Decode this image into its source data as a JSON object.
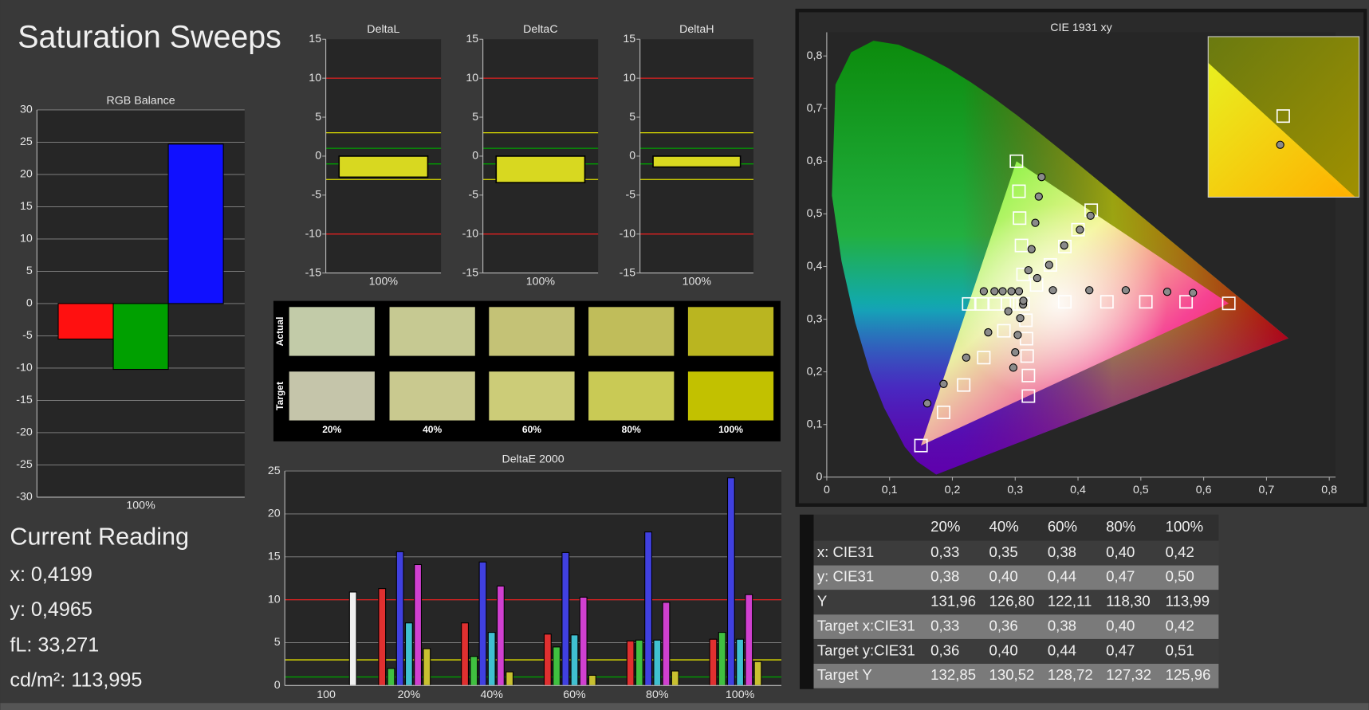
{
  "title": "Saturation Sweeps",
  "chart_data": [
    {
      "type": "bar",
      "title": "RGB Balance",
      "categories": [
        "100%"
      ],
      "series": [
        {
          "color": "#ff1010",
          "values": [
            -5.5
          ]
        },
        {
          "color": "#00a000",
          "values": [
            -10.2
          ]
        },
        {
          "color": "#1010ff",
          "values": [
            24.7
          ]
        }
      ],
      "ylim": [
        -30,
        30
      ],
      "yticks": [
        -30,
        -25,
        -20,
        -15,
        -10,
        -5,
        0,
        5,
        10,
        15,
        20,
        25,
        30
      ],
      "grid": true
    },
    {
      "type": "bar",
      "title": "DeltaL",
      "categories": [
        "100%"
      ],
      "values": [
        -2.7
      ],
      "color": "#d8d820",
      "ylim": [
        -15,
        15
      ],
      "yticks": [
        -15,
        -10,
        -5,
        0,
        5,
        10,
        15
      ],
      "grid": false,
      "reference_lines": [
        {
          "value": 10,
          "color": "#e02020"
        },
        {
          "value": -10,
          "color": "#e02020"
        },
        {
          "value": 3,
          "color": "#e0e000"
        },
        {
          "value": -3,
          "color": "#e0e000"
        },
        {
          "value": 1,
          "color": "#00a000"
        },
        {
          "value": -1,
          "color": "#00a000"
        }
      ]
    },
    {
      "type": "bar",
      "title": "DeltaC",
      "categories": [
        "100%"
      ],
      "values": [
        -3.4
      ],
      "color": "#d8d820",
      "ylim": [
        -15,
        15
      ],
      "yticks": [
        -15,
        -10,
        -5,
        0,
        5,
        10,
        15
      ],
      "grid": false,
      "reference_lines": [
        {
          "value": 10,
          "color": "#e02020"
        },
        {
          "value": -10,
          "color": "#e02020"
        },
        {
          "value": 3,
          "color": "#e0e000"
        },
        {
          "value": -3,
          "color": "#e0e000"
        },
        {
          "value": 1,
          "color": "#00a000"
        },
        {
          "value": -1,
          "color": "#00a000"
        }
      ]
    },
    {
      "type": "bar",
      "title": "DeltaH",
      "categories": [
        "100%"
      ],
      "values": [
        -1.4
      ],
      "color": "#d8d820",
      "ylim": [
        -15,
        15
      ],
      "yticks": [
        -15,
        -10,
        -5,
        0,
        5,
        10,
        15
      ],
      "grid": false,
      "reference_lines": [
        {
          "value": 10,
          "color": "#e02020"
        },
        {
          "value": -10,
          "color": "#e02020"
        },
        {
          "value": 3,
          "color": "#e0e000"
        },
        {
          "value": -3,
          "color": "#e0e000"
        },
        {
          "value": 1,
          "color": "#00a000"
        },
        {
          "value": -1,
          "color": "#00a000"
        }
      ]
    },
    {
      "type": "bar",
      "title": "DeltaE 2000",
      "categories": [
        "100",
        "20%",
        "40%",
        "60%",
        "80%",
        "100%"
      ],
      "series": [
        {
          "color": "#e03030",
          "values": [
            null,
            11.3,
            7.3,
            6.0,
            5.2,
            5.4
          ]
        },
        {
          "color": "#40c040",
          "values": [
            null,
            2.0,
            3.4,
            4.5,
            5.3,
            6.2
          ]
        },
        {
          "color": "#4040e0",
          "values": [
            null,
            15.6,
            14.4,
            15.5,
            17.9,
            24.2
          ]
        },
        {
          "color": "#40c0d0",
          "values": [
            null,
            7.3,
            6.2,
            5.9,
            5.3,
            5.4
          ]
        },
        {
          "color": "#d040d0",
          "values": [
            null,
            14.1,
            11.6,
            10.3,
            9.7,
            10.6
          ]
        },
        {
          "color": "#c8c030",
          "values": [
            null,
            4.3,
            1.6,
            1.2,
            1.7,
            2.8
          ]
        },
        {
          "color": "#f0f0f0",
          "values": [
            10.9,
            null,
            null,
            null,
            null,
            null
          ]
        }
      ],
      "ylim": [
        0,
        25
      ],
      "yticks": [
        0,
        5,
        10,
        15,
        20,
        25
      ],
      "grid": true,
      "reference_lines": [
        {
          "value": 10,
          "color": "#e02020"
        },
        {
          "value": 3,
          "color": "#e0e000"
        },
        {
          "value": 1,
          "color": "#00a000"
        }
      ]
    },
    {
      "type": "scatter",
      "title": "CIE 1931 xy",
      "xlim": [
        0,
        0.81
      ],
      "ylim": [
        0,
        0.845
      ],
      "xticks": [
        0,
        {
          "value": 0.1,
          "label": "0,1"
        },
        {
          "value": 0.2,
          "label": "0,2"
        },
        {
          "value": 0.3,
          "label": "0,3"
        },
        {
          "value": 0.4,
          "label": "0,4"
        },
        {
          "value": 0.5,
          "label": "0,5"
        },
        {
          "value": 0.6,
          "label": "0,6"
        },
        {
          "value": 0.7,
          "label": "0,7"
        },
        {
          "value": 0.8,
          "label": "0,8"
        }
      ],
      "yticks": [
        0,
        {
          "value": 0.1,
          "label": "0,1"
        },
        {
          "value": 0.2,
          "label": "0,2"
        },
        {
          "value": 0.3,
          "label": "0,3"
        },
        {
          "value": 0.4,
          "label": "0,4"
        },
        {
          "value": 0.5,
          "label": "0,5"
        },
        {
          "value": 0.6,
          "label": "0,6"
        },
        {
          "value": 0.7,
          "label": "0,7"
        },
        {
          "value": 0.8,
          "label": "0,8"
        }
      ],
      "series": [
        {
          "marker": "square",
          "color": "#ffffff",
          "x": [
            0.3125,
            0.31,
            0.307,
            0.306,
            0.302,
            0.334,
            0.356,
            0.379,
            0.4,
            0.421,
            0.379,
            0.446,
            0.508,
            0.572,
            0.64,
            0.302,
            0.288,
            0.268,
            0.247,
            0.226,
            0.282,
            0.25,
            0.218,
            0.186,
            0.15,
            0.317,
            0.318,
            0.319,
            0.321,
            0.321,
            0.3127
          ],
          "values": [
            0.385,
            0.44,
            0.492,
            0.543,
            0.6,
            0.365,
            0.403,
            0.438,
            0.47,
            0.507,
            0.333,
            0.333,
            0.333,
            0.333,
            0.33,
            0.329,
            0.329,
            0.329,
            0.329,
            0.329,
            0.278,
            0.227,
            0.175,
            0.123,
            0.06,
            0.298,
            0.263,
            0.23,
            0.193,
            0.154,
            0.329
          ]
        },
        {
          "marker": "circle",
          "color": "#8a8a8a",
          "x": [
            0.321,
            0.326,
            0.332,
            0.3375,
            0.342,
            0.335,
            0.354,
            0.378,
            0.403,
            0.4199,
            0.36,
            0.418,
            0.476,
            0.542,
            0.583,
            0.306,
            0.294,
            0.28,
            0.267,
            0.25,
            0.289,
            0.257,
            0.222,
            0.186,
            0.16,
            0.3125,
            0.308,
            0.304,
            0.3,
            0.297,
            0.313
          ],
          "values": [
            0.393,
            0.433,
            0.483,
            0.533,
            0.57,
            0.378,
            0.403,
            0.44,
            0.47,
            0.4965,
            0.355,
            0.355,
            0.355,
            0.352,
            0.35,
            0.353,
            0.353,
            0.353,
            0.353,
            0.353,
            0.315,
            0.275,
            0.227,
            0.177,
            0.14,
            0.328,
            0.302,
            0.27,
            0.237,
            0.208,
            0.335
          ]
        }
      ]
    }
  ],
  "swatches": {
    "row_labels": [
      "Actual",
      "Target"
    ],
    "columns": [
      "20%",
      "40%",
      "60%",
      "80%",
      "100%"
    ],
    "actual": [
      "#c2cba8",
      "#c6c992",
      "#c4c276",
      "#c0bd5a",
      "#bab520"
    ],
    "target": [
      "#c5c5aa",
      "#c9c98f",
      "#cccc78",
      "#c9ca55",
      "#c2c100"
    ]
  },
  "current_reading": {
    "title": "Current Reading",
    "lines": [
      "x: 0,4199",
      "y: 0,4965",
      "fL: 33,271",
      "cd/m²: 113,995"
    ]
  },
  "table": {
    "columns": [
      "20%",
      "40%",
      "60%",
      "80%",
      "100%"
    ],
    "rows": [
      [
        "x: CIE31",
        "0,33",
        "0,35",
        "0,38",
        "0,40",
        "0,42"
      ],
      [
        "y: CIE31",
        "0,38",
        "0,40",
        "0,44",
        "0,47",
        "0,50"
      ],
      [
        "Y",
        "131,96",
        "126,80",
        "122,11",
        "118,30",
        "113,99"
      ],
      [
        "Target x:CIE31",
        "0,33",
        "0,36",
        "0,38",
        "0,40",
        "0,42"
      ],
      [
        "Target y:CIE31",
        "0,36",
        "0,40",
        "0,44",
        "0,47",
        "0,51"
      ],
      [
        "Target Y",
        "132,85",
        "130,52",
        "128,72",
        "127,32",
        "125,96"
      ]
    ]
  }
}
